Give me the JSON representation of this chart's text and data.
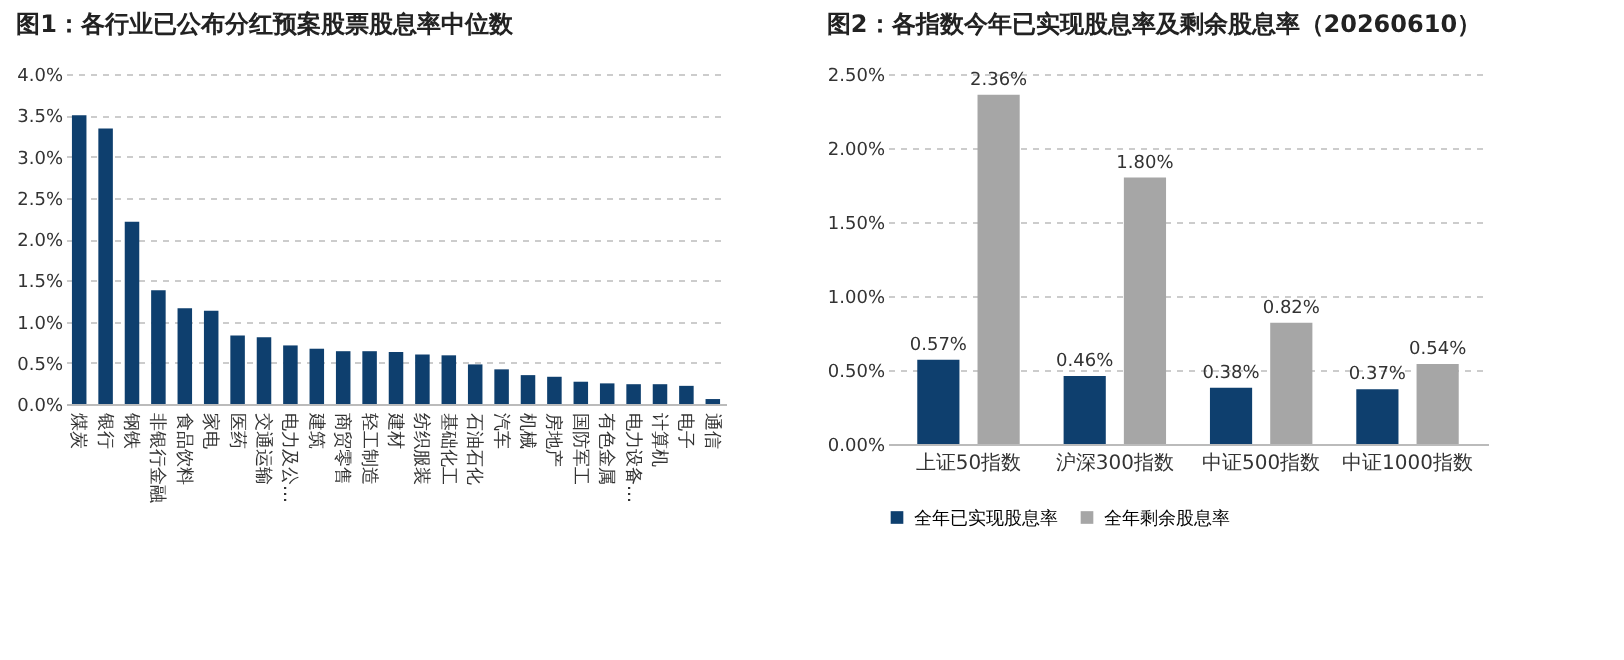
{
  "chart_data": [
    {
      "type": "bar",
      "title": "图1：各行业已公布分红预案股票股息率中位数",
      "categories": [
        "煤炭",
        "银行",
        "钢铁",
        "非银行金融",
        "食品饮料",
        "家电",
        "医药",
        "交通运输",
        "电力及公…",
        "建筑",
        "商贸零售",
        "轻工制造",
        "建材",
        "纺织服装",
        "基础化工",
        "石油石化",
        "汽车",
        "机械",
        "房地产",
        "国防军工",
        "有色金属",
        "电力设备…",
        "计算机",
        "电子",
        "通信"
      ],
      "values": [
        3.5,
        3.34,
        2.21,
        1.38,
        1.16,
        1.13,
        0.83,
        0.81,
        0.71,
        0.67,
        0.64,
        0.64,
        0.63,
        0.6,
        0.59,
        0.48,
        0.42,
        0.35,
        0.33,
        0.27,
        0.25,
        0.24,
        0.24,
        0.22,
        0.06
      ],
      "color": "#0e3f6e",
      "ylim": [
        0,
        4
      ],
      "yticks": [
        {
          "value": 0,
          "label": "0.0%"
        },
        {
          "value": 0.5,
          "label": "0.5%"
        },
        {
          "value": 1,
          "label": "1.0%"
        },
        {
          "value": 1.5,
          "label": "1.5%"
        },
        {
          "value": 2,
          "label": "2.0%"
        },
        {
          "value": 2.5,
          "label": "2.5%"
        },
        {
          "value": 3,
          "label": "3.0%"
        },
        {
          "value": 3.5,
          "label": "3.5%"
        },
        {
          "value": 4,
          "label": "4.0%"
        }
      ],
      "grid": "y"
    },
    {
      "type": "bar",
      "title": "图2：各指数今年已实现股息率及剩余股息率（20260610）",
      "categories": [
        "上证50指数",
        "沪深300指数",
        "中证500指数",
        "中证1000指数"
      ],
      "series": [
        {
          "name": "全年已实现股息率",
          "color": "#0e3f6e",
          "values": [
            0.57,
            0.46,
            0.38,
            0.37
          ],
          "value_labels": [
            "0.57%",
            "0.46%",
            "0.38%",
            "0.37%"
          ]
        },
        {
          "name": "全年剩余股息率",
          "color": "#a6a6a6",
          "values": [
            2.36,
            1.8,
            0.82,
            0.54
          ],
          "value_labels": [
            "2.36%",
            "1.80%",
            "0.82%",
            "0.54%"
          ]
        }
      ],
      "ylim": [
        0,
        2.5
      ],
      "yticks": [
        {
          "value": 0,
          "label": "0.00%"
        },
        {
          "value": 0.5,
          "label": "0.50%"
        },
        {
          "value": 1,
          "label": "1.00%"
        },
        {
          "value": 1.5,
          "label": "1.50%"
        },
        {
          "value": 2,
          "label": "2.00%"
        },
        {
          "value": 2.5,
          "label": "2.50%"
        }
      ],
      "grid": "y",
      "legend": "bottom"
    }
  ]
}
